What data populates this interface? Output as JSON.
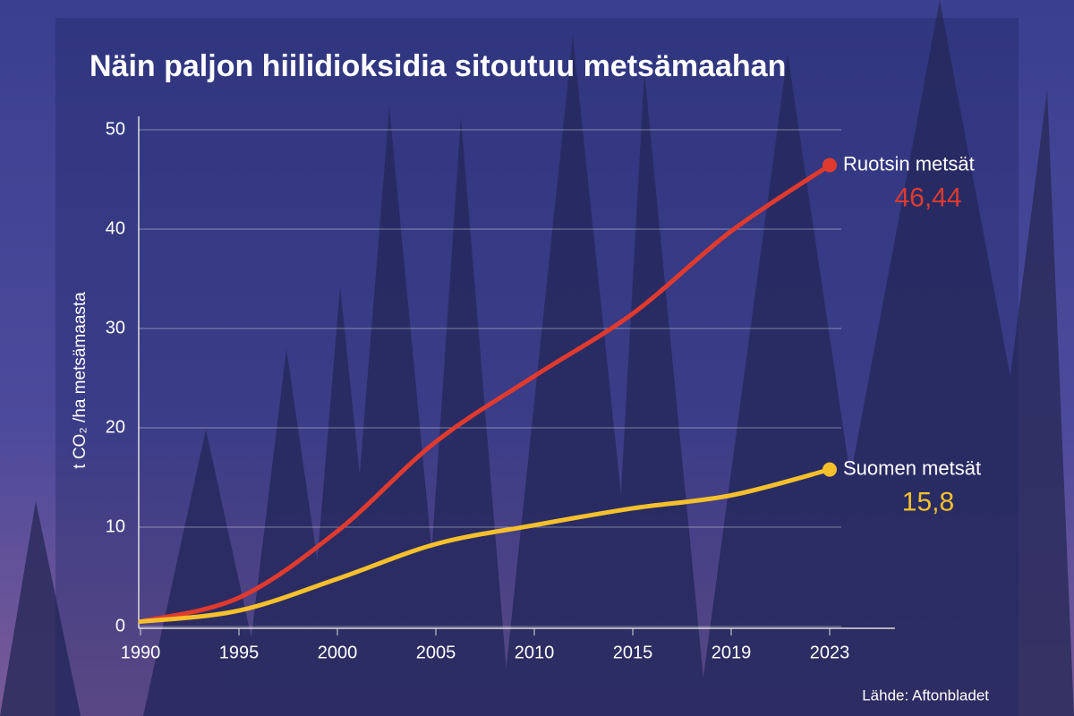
{
  "chart_data": {
    "type": "line",
    "title": "Näin paljon hiilidioksidia sitoutuu metsämaahan",
    "y_label": "t CO₂ /ha metsämaasta",
    "source": "Lähde: Aftonbladet",
    "categories": [
      "1990",
      "1995",
      "2000",
      "2005",
      "2010",
      "2015",
      "2019",
      "2023"
    ],
    "series": [
      {
        "name": "Ruotsin metsät",
        "color": "#e03a2f",
        "values": [
          0.5,
          2.9,
          9.6,
          18.6,
          25.2,
          31.5,
          39.8,
          46.44
        ],
        "value_labels": [
          null,
          null,
          null,
          null,
          null,
          null,
          null,
          "46,44"
        ]
      },
      {
        "name": "Suomen metsät",
        "color": "#f5c02c",
        "values": [
          0.5,
          1.6,
          4.8,
          8.3,
          10.2,
          11.9,
          13.2,
          15.8
        ],
        "value_labels": [
          null,
          null,
          null,
          null,
          null,
          null,
          null,
          "15,8"
        ]
      }
    ],
    "ylim": [
      0,
      50
    ],
    "yticks": [
      0,
      10,
      20,
      30,
      40,
      50
    ],
    "grid": true
  }
}
